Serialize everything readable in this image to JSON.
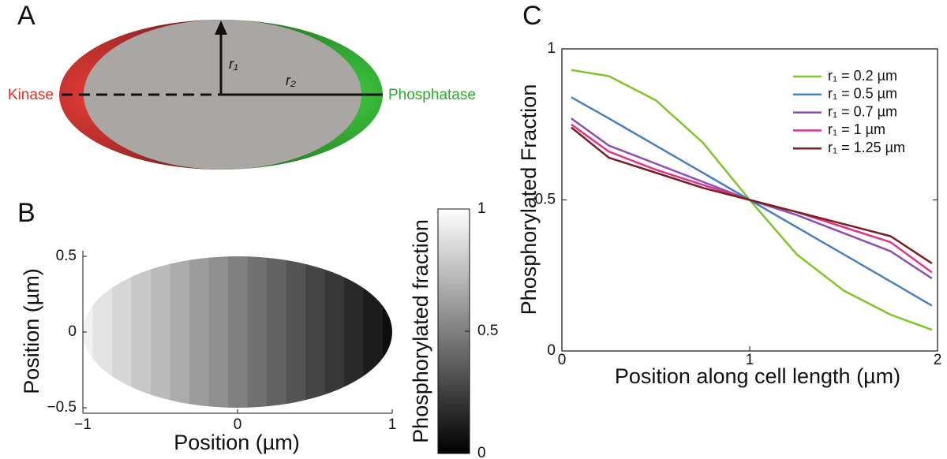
{
  "diagram": {
    "panel_labels": [
      "A",
      "B",
      "C"
    ],
    "left_label": "Kinase",
    "right_label": "Phosphatase",
    "radius_labels": [
      "r₁",
      "r₂"
    ]
  },
  "chart_data": [
    {
      "type": "heatmap",
      "xlabel": "Position (µm)",
      "ylabel": "Position (µm)",
      "xlim": [
        -1,
        1
      ],
      "ylim": [
        -0.5,
        0.5
      ],
      "xticks": [
        {
          "value": -1,
          "label": "−1"
        },
        0,
        1
      ],
      "yticks": [
        {
          "value": -0.5,
          "label": "−0.5"
        },
        0,
        0.5
      ],
      "x": [
        -1,
        -0.875,
        -0.75,
        -0.625,
        -0.5,
        -0.375,
        -0.25,
        -0.125,
        0,
        0.125,
        0.25,
        0.375,
        0.5,
        0.625,
        0.75,
        0.875,
        1
      ],
      "values": [
        0.95,
        0.89,
        0.84,
        0.78,
        0.73,
        0.67,
        0.61,
        0.56,
        0.5,
        0.44,
        0.39,
        0.33,
        0.27,
        0.22,
        0.16,
        0.11,
        0.05
      ],
      "colorbar": {
        "label": "Phosphorylated fraction",
        "lim": [
          0,
          1
        ],
        "ticks": [
          0,
          0.5,
          1
        ]
      }
    },
    {
      "type": "line",
      "xlabel": "Position along cell length (µm)",
      "ylabel": "Phosphorylated Fraction",
      "xlim": [
        0,
        2
      ],
      "ylim": [
        0,
        1
      ],
      "xticks": [
        0,
        1,
        2
      ],
      "yticks": [
        0,
        0.5,
        1
      ],
      "legend": "upper right",
      "x": [
        0.05,
        0.25,
        0.5,
        0.75,
        1.0,
        1.25,
        1.5,
        1.75,
        1.97
      ],
      "series": [
        {
          "name": "r₁ = 0.2 µm",
          "color": "#7dc52a",
          "values": [
            0.93,
            0.91,
            0.83,
            0.69,
            0.5,
            0.32,
            0.2,
            0.12,
            0.07
          ]
        },
        {
          "name": "r₁ = 0.5 µm",
          "color": "#4a7fc1",
          "values": [
            0.84,
            0.77,
            0.68,
            0.59,
            0.5,
            0.41,
            0.32,
            0.23,
            0.15
          ]
        },
        {
          "name": "r₁ = 0.7 µm",
          "color": "#8a4fb5",
          "values": [
            0.77,
            0.68,
            0.62,
            0.56,
            0.5,
            0.45,
            0.39,
            0.33,
            0.24
          ]
        },
        {
          "name": "r₁ = 1 µm",
          "color": "#e0338a",
          "values": [
            0.75,
            0.66,
            0.6,
            0.55,
            0.5,
            0.46,
            0.41,
            0.36,
            0.26
          ]
        },
        {
          "name": "r₁ = 1.25 µm",
          "color": "#7a1f1f",
          "values": [
            0.74,
            0.64,
            0.59,
            0.54,
            0.5,
            0.46,
            0.42,
            0.38,
            0.29
          ]
        }
      ]
    }
  ]
}
